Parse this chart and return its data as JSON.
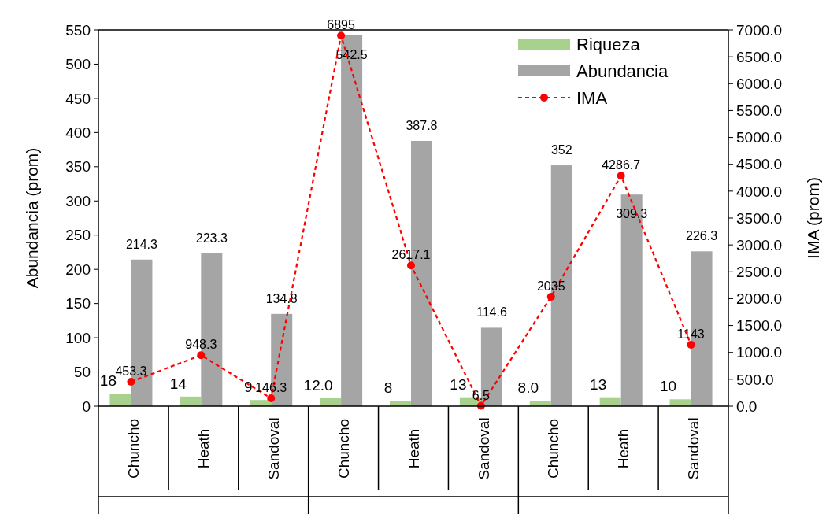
{
  "chart_data": {
    "type": "bar",
    "ylabel": "Abundancia (prom)",
    "y2label": "IMA (prom)",
    "categories": [
      "Chuncho",
      "Heath",
      "Sandoval",
      "Chuncho",
      "Heath",
      "Sandoval",
      "Chuncho",
      "Heath",
      "Sandoval"
    ],
    "ylim": [
      0,
      550
    ],
    "yticks": [
      0,
      50,
      100,
      150,
      200,
      250,
      300,
      350,
      400,
      450,
      500,
      550
    ],
    "y2lim": [
      0,
      7000
    ],
    "y2ticks": [
      {
        "value": 0,
        "label": "0.0"
      },
      {
        "value": 500,
        "label": "500.0"
      },
      {
        "value": 1000,
        "label": "1000.0"
      },
      {
        "value": 1500,
        "label": "1500.0"
      },
      {
        "value": 2000,
        "label": "2000.0"
      },
      {
        "value": 2500,
        "label": "2500.0"
      },
      {
        "value": 3000,
        "label": "3000.0"
      },
      {
        "value": 3500,
        "label": "3500.0"
      },
      {
        "value": 4000,
        "label": "4000.0"
      },
      {
        "value": 4500,
        "label": "4500.0"
      },
      {
        "value": 5000,
        "label": "5000.0"
      },
      {
        "value": 5500,
        "label": "5500.0"
      },
      {
        "value": 6000,
        "label": "6000.0"
      },
      {
        "value": 6500,
        "label": "6500.0"
      },
      {
        "value": 7000,
        "label": "7000.0"
      }
    ],
    "grid": false,
    "legend": "top right",
    "series": [
      {
        "name": "Riqueza",
        "color": "#a9d18e",
        "values": [
          18,
          14,
          9,
          12,
          8,
          13,
          8,
          13,
          10
        ],
        "value_labels": [
          "18",
          "14",
          "9",
          "12.0",
          "8",
          "13",
          "8.0",
          "13",
          "10"
        ]
      },
      {
        "name": "Abundancia",
        "color": "#a5a5a5",
        "values": [
          214.3,
          223.3,
          134.8,
          542.5,
          387.8,
          114.6,
          352,
          309.3,
          226.3
        ],
        "value_labels": [
          "214.3",
          "223.3",
          "134.8",
          "542.5",
          "387.8",
          "114.6",
          "352",
          "309.3",
          "226.3"
        ]
      },
      {
        "name": "IMA",
        "type": "line",
        "axis": "y2",
        "color": "#ff0000",
        "marker": "circle",
        "line_style": "dashed",
        "values": [
          453.3,
          948.3,
          146.3,
          6895,
          2617.1,
          6.5,
          2035,
          4286.7,
          1143
        ],
        "value_labels": [
          "453.3",
          "948.3",
          "146.3",
          "6895",
          "2617.1",
          "6.5",
          "2035",
          "4286.7",
          "1143"
        ]
      }
    ]
  }
}
